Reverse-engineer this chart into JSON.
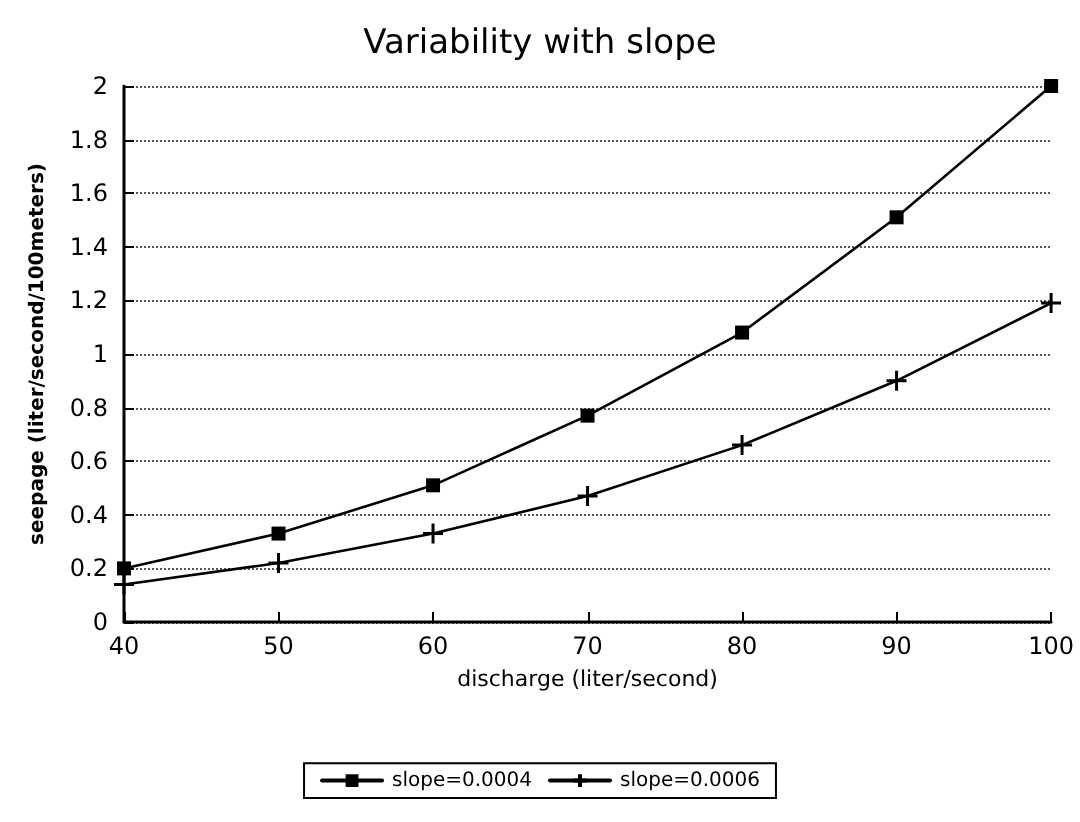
{
  "chart_data": {
    "type": "line",
    "title": "Variability with slope",
    "xlabel": "discharge (liter/second)",
    "ylabel": "seepage (liter/second/100meters)",
    "x": [
      40,
      50,
      60,
      70,
      80,
      90,
      100
    ],
    "series": [
      {
        "name": "slope=0.0004",
        "color": "#000000",
        "marker": "square",
        "values": [
          0.2,
          0.33,
          0.51,
          0.77,
          1.08,
          1.51,
          2.0
        ]
      },
      {
        "name": "slope=0.0006",
        "color": "#000000",
        "marker": "cross",
        "values": [
          0.14,
          0.22,
          0.33,
          0.47,
          0.66,
          0.9,
          1.19
        ]
      }
    ],
    "xlim": [
      40,
      100
    ],
    "xticks": [
      40,
      50,
      60,
      70,
      80,
      90,
      100
    ],
    "ylim": [
      0,
      2
    ],
    "yticks": [
      0,
      0.2,
      0.4,
      0.6,
      0.8,
      1,
      1.2,
      1.4,
      1.6,
      1.8,
      2
    ],
    "grid": "y",
    "legend": "bottom",
    "line_style": "solid"
  }
}
